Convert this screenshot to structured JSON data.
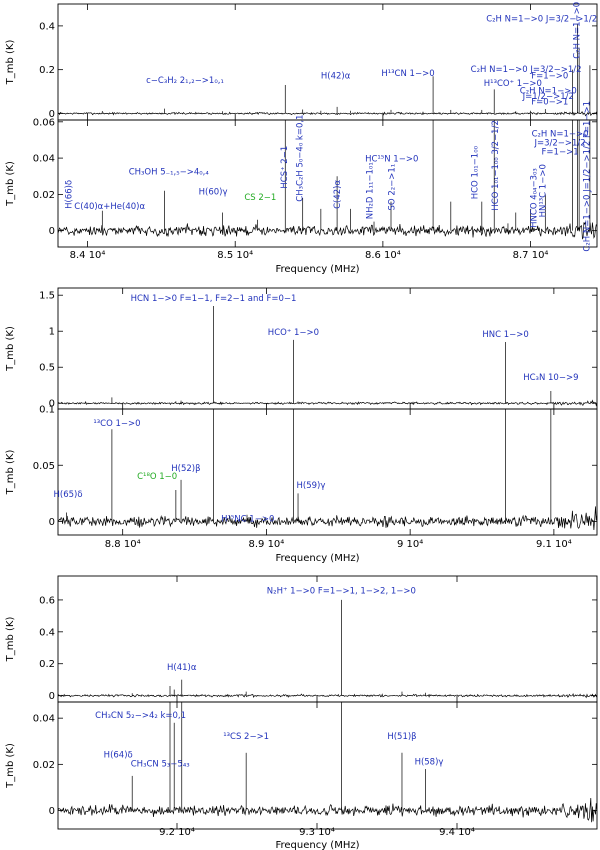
{
  "chart_data": [
    {
      "type": "line",
      "xlabel": "Frequency (MHz)",
      "ylabel": "T_mb (K)",
      "xlim": [
        83800,
        87450
      ],
      "x_ticks": [
        {
          "value": 84000,
          "label": "8.4 10⁴"
        },
        {
          "value": 85000,
          "label": "8.5 10⁴"
        },
        {
          "value": 86000,
          "label": "8.6 10⁴"
        },
        {
          "value": 87000,
          "label": "8.7 10⁴"
        }
      ],
      "top_panel": {
        "ylim": [
          -0.03,
          0.5
        ],
        "y_ticks": [
          {
            "value": 0,
            "label": "0"
          },
          {
            "value": 0.2,
            "label": "0.2"
          },
          {
            "value": 0.4,
            "label": "0.4"
          }
        ]
      },
      "bottom_panel": {
        "ylim": [
          -0.009,
          0.061
        ],
        "y_ticks": [
          {
            "value": 0,
            "label": "0"
          },
          {
            "value": 0.02,
            "label": "0.02"
          },
          {
            "value": 0.04,
            "label": "0.04"
          },
          {
            "value": 0.06,
            "label": "0.06"
          }
        ]
      },
      "lines": [
        {
          "x": 84100,
          "y": 0.011
        },
        {
          "x": 84521,
          "y": 0.022
        },
        {
          "x": 84915,
          "y": 0.01
        },
        {
          "x": 85150,
          "y": 0.006
        },
        {
          "x": 85339,
          "y": 0.13
        },
        {
          "x": 85457,
          "y": 0.018
        },
        {
          "x": 85690,
          "y": 0.03
        },
        {
          "x": 85940,
          "y": 0.005
        },
        {
          "x": 86055,
          "y": 0.016
        },
        {
          "x": 86340,
          "y": 0.17
        },
        {
          "x": 86670,
          "y": 0.016
        },
        {
          "x": 86754,
          "y": 0.11
        },
        {
          "x": 86847,
          "y": 0.004
        },
        {
          "x": 87100,
          "y": 0.02
        },
        {
          "x": 87284,
          "y": 0.2
        },
        {
          "x": 87317,
          "y": 0.41
        },
        {
          "x": 87329,
          "y": 0.3
        },
        {
          "x": 87402,
          "y": 0.22
        },
        {
          "x": 85580,
          "y": 0.012
        },
        {
          "x": 85780,
          "y": 0.012
        },
        {
          "x": 86460,
          "y": 0.016
        },
        {
          "x": 86900,
          "y": 0.01
        },
        {
          "x": 87000,
          "y": 0.012
        }
      ],
      "annotations": [
        {
          "text": "C₂H N=1−>0 J=3/2−>1/2 F=2−>1",
          "x": 87210,
          "y": 0.42,
          "panel": "top",
          "anchor": "middle",
          "color": "#2233bb"
        },
        {
          "text": "C₂H N=1−>0",
          "x": 87330,
          "y": 0.38,
          "panel": "top",
          "anchor": "middle",
          "color": "#2233bb",
          "rotate": true
        },
        {
          "text": "c−C₃H₂ 2₁,₂−>1₀,₁",
          "x": 84660,
          "y": 0.14,
          "panel": "top",
          "anchor": "middle",
          "color": "#2233bb"
        },
        {
          "text": "H(42)α",
          "x": 85680,
          "y": 0.16,
          "panel": "top",
          "anchor": "middle",
          "color": "#2233bb"
        },
        {
          "text": "H¹³CN 1−>0",
          "x": 86170,
          "y": 0.17,
          "panel": "top",
          "anchor": "middle",
          "color": "#2233bb"
        },
        {
          "text": "C₂H N=1−>0 J=3/2−>1/2",
          "x": 86970,
          "y": 0.19,
          "panel": "top",
          "anchor": "middle",
          "color": "#2233bb"
        },
        {
          "text": "F=1−>0",
          "x": 87130,
          "y": 0.16,
          "panel": "top",
          "anchor": "middle",
          "color": "#2233bb"
        },
        {
          "text": "H¹³CO⁺ 1−>0",
          "x": 86880,
          "y": 0.125,
          "panel": "top",
          "anchor": "middle",
          "color": "#2233bb"
        },
        {
          "text": "C₂H N=1−>0",
          "x": 87120,
          "y": 0.09,
          "panel": "top",
          "anchor": "middle",
          "color": "#2233bb"
        },
        {
          "text": "J=1/2−>1/2",
          "x": 87120,
          "y": 0.065,
          "panel": "top",
          "anchor": "middle",
          "color": "#2233bb"
        },
        {
          "text": "F=0−>1",
          "x": 87130,
          "y": 0.04,
          "panel": "top",
          "anchor": "middle",
          "color": "#2233bb"
        },
        {
          "text": "C(40)α+He(40)α",
          "x": 84150,
          "y": 0.012,
          "panel": "bottom",
          "anchor": "middle",
          "color": "#2233bb"
        },
        {
          "text": "H(66)δ",
          "x": 83890,
          "y": 0.02,
          "panel": "bottom",
          "anchor": "middle",
          "color": "#2233bb",
          "rotate": true
        },
        {
          "text": "CH₃OH 5₋₁,₅−>4₀,₄",
          "x": 84550,
          "y": 0.031,
          "panel": "bottom",
          "anchor": "middle",
          "color": "#2233bb"
        },
        {
          "text": "H(60)γ",
          "x": 84850,
          "y": 0.02,
          "panel": "bottom",
          "anchor": "middle",
          "color": "#2233bb"
        },
        {
          "text": "CS 2−1",
          "x": 85170,
          "y": 0.017,
          "panel": "bottom",
          "anchor": "middle",
          "color": "#22aa22"
        },
        {
          "text": "HCS⁺ 2−1",
          "x": 85350,
          "y": 0.035,
          "panel": "bottom",
          "anchor": "middle",
          "color": "#2233bb",
          "rotate": true
        },
        {
          "text": "CH₃C₂H 5₀−4₀ k=0,1",
          "x": 85457,
          "y": 0.04,
          "panel": "bottom",
          "anchor": "middle",
          "color": "#2233bb",
          "rotate": true
        },
        {
          "text": "C(42)α",
          "x": 85710,
          "y": 0.02,
          "panel": "bottom",
          "anchor": "middle",
          "color": "#2233bb",
          "rotate": true
        },
        {
          "text": "HC¹⁵N 1−>0",
          "x": 86060,
          "y": 0.038,
          "panel": "bottom",
          "anchor": "middle",
          "color": "#2233bb"
        },
        {
          "text": "NH₂D 1₁₁−1₀₁",
          "x": 85930,
          "y": 0.022,
          "panel": "bottom",
          "anchor": "middle",
          "color": "#2233bb",
          "rotate": true
        },
        {
          "text": "SO 2₂−>1₁",
          "x": 86080,
          "y": 0.024,
          "panel": "bottom",
          "anchor": "middle",
          "color": "#2233bb",
          "rotate": true
        },
        {
          "text": "HCO 1₀₁−1₀₀",
          "x": 86640,
          "y": 0.032,
          "panel": "bottom",
          "anchor": "middle",
          "color": "#2233bb",
          "rotate": true
        },
        {
          "text": "HCO 1₀₁−1₀₀ 3/2−1/2",
          "x": 86780,
          "y": 0.036,
          "panel": "bottom",
          "anchor": "middle",
          "color": "#2233bb",
          "rotate": true
        },
        {
          "text": "HNCO 4₀₄−3₀₃",
          "x": 87040,
          "y": 0.018,
          "panel": "bottom",
          "anchor": "middle",
          "color": "#2233bb",
          "rotate": true
        },
        {
          "text": "HN¹³C 1−>0",
          "x": 87100,
          "y": 0.022,
          "panel": "bottom",
          "anchor": "middle",
          "color": "#2233bb",
          "rotate": true
        },
        {
          "text": "C₂H N=1−>0",
          "x": 87200,
          "y": 0.052,
          "panel": "bottom",
          "anchor": "middle",
          "color": "#2233bb"
        },
        {
          "text": "J=3/2−>1/2",
          "x": 87200,
          "y": 0.047,
          "panel": "bottom",
          "anchor": "middle",
          "color": "#2233bb"
        },
        {
          "text": "F=1−>1",
          "x": 87200,
          "y": 0.042,
          "panel": "bottom",
          "anchor": "middle",
          "color": "#2233bb"
        },
        {
          "text": "C₂H N=1−>0 J=1/2−>1/2 F=1−>1",
          "x": 87400,
          "y": 0.03,
          "panel": "bottom",
          "anchor": "middle",
          "color": "#2233bb",
          "rotate": true
        }
      ]
    },
    {
      "type": "line",
      "xlabel": "Frequency (MHz)",
      "ylabel": "T_mb (K)",
      "xlim": [
        87550,
        91300
      ],
      "x_ticks": [
        {
          "value": 88000,
          "label": "8.8 10⁴"
        },
        {
          "value": 89000,
          "label": "8.9 10⁴"
        },
        {
          "value": 90000,
          "label": "9 10⁴"
        },
        {
          "value": 91000,
          "label": "9.1 10⁴"
        }
      ],
      "top_panel": {
        "ylim": [
          -0.08,
          1.6
        ],
        "y_ticks": [
          {
            "value": 0,
            "label": "0"
          },
          {
            "value": 0.5,
            "label": "0.5"
          },
          {
            "value": 1,
            "label": "1"
          },
          {
            "value": 1.5,
            "label": "1.5"
          }
        ]
      },
      "bottom_panel": {
        "ylim": [
          -0.012,
          0.1
        ],
        "y_ticks": [
          {
            "value": 0,
            "label": "0"
          },
          {
            "value": 0.05,
            "label": "0.05"
          },
          {
            "value": 0.1,
            "label": "0.1"
          }
        ]
      },
      "lines": [
        {
          "x": 87610,
          "y": 0.008
        },
        {
          "x": 87925,
          "y": 0.082
        },
        {
          "x": 88370,
          "y": 0.028
        },
        {
          "x": 88406,
          "y": 0.037
        },
        {
          "x": 88632,
          "y": 1.35
        },
        {
          "x": 88865,
          "y": 0.006
        },
        {
          "x": 89188,
          "y": 0.88
        },
        {
          "x": 89220,
          "y": 0.025
        },
        {
          "x": 90664,
          "y": 0.85
        },
        {
          "x": 90979,
          "y": 0.17
        }
      ],
      "annotations": [
        {
          "text": "HCN 1−>0 F=1−1, F=2−1 and F=0−1",
          "x": 88632,
          "y": 1.42,
          "panel": "top",
          "anchor": "middle",
          "color": "#2233bb"
        },
        {
          "text": "HCO⁺ 1−>0",
          "x": 89188,
          "y": 0.95,
          "panel": "top",
          "anchor": "middle",
          "color": "#2233bb"
        },
        {
          "text": "HNC 1−>0",
          "x": 90664,
          "y": 0.92,
          "panel": "top",
          "anchor": "middle",
          "color": "#2233bb"
        },
        {
          "text": "HC₃N 10−>9",
          "x": 90979,
          "y": 0.32,
          "panel": "top",
          "anchor": "middle",
          "color": "#2233bb"
        },
        {
          "text": "¹³CO 1−>0",
          "x": 87960,
          "y": 0.085,
          "panel": "bottom",
          "anchor": "middle",
          "color": "#2233bb"
        },
        {
          "text": "H(65)δ",
          "x": 87620,
          "y": 0.022,
          "panel": "bottom",
          "anchor": "middle",
          "color": "#2233bb"
        },
        {
          "text": "C¹⁸O 1−0",
          "x": 88240,
          "y": 0.038,
          "panel": "bottom",
          "anchor": "middle",
          "color": "#22aa22"
        },
        {
          "text": "H(52)β",
          "x": 88440,
          "y": 0.045,
          "panel": "bottom",
          "anchor": "middle",
          "color": "#2233bb"
        },
        {
          "text": "H¹⁵NC 1−>0",
          "x": 88870,
          "y": 0.0,
          "panel": "bottom",
          "anchor": "middle",
          "color": "#2233bb"
        },
        {
          "text": "H(59)γ",
          "x": 89310,
          "y": 0.03,
          "panel": "bottom",
          "anchor": "middle",
          "color": "#2233bb"
        }
      ]
    },
    {
      "type": "line",
      "xlabel": "Frequency (MHz)",
      "ylabel": "T_mb (K)",
      "xlim": [
        91150,
        95000
      ],
      "x_ticks": [
        {
          "value": 92000,
          "label": "9.2 10⁴"
        },
        {
          "value": 93000,
          "label": "9.3 10⁴"
        },
        {
          "value": 94000,
          "label": "9.4 10⁴"
        }
      ],
      "top_panel": {
        "ylim": [
          -0.04,
          0.75
        ],
        "y_ticks": [
          {
            "value": 0,
            "label": "0"
          },
          {
            "value": 0.2,
            "label": "0.2"
          },
          {
            "value": 0.4,
            "label": "0.4"
          },
          {
            "value": 0.6,
            "label": "0.6"
          }
        ]
      },
      "bottom_panel": {
        "ylim": [
          -0.008,
          0.047
        ],
        "y_ticks": [
          {
            "value": 0,
            "label": "0"
          },
          {
            "value": 0.02,
            "label": "0.02"
          },
          {
            "value": 0.04,
            "label": "0.04"
          }
        ]
      },
      "lines": [
        {
          "x": 91680,
          "y": 0.015
        },
        {
          "x": 91950,
          "y": 0.06
        },
        {
          "x": 91980,
          "y": 0.038
        },
        {
          "x": 92034,
          "y": 0.1
        },
        {
          "x": 92494,
          "y": 0.025
        },
        {
          "x": 93174,
          "y": 0.6
        },
        {
          "x": 93607,
          "y": 0.025
        },
        {
          "x": 93776,
          "y": 0.018
        }
      ],
      "annotations": [
        {
          "text": "N₂H⁺ 1−>0 F=1−>1, 1−>2, 1−>0",
          "x": 93174,
          "y": 0.64,
          "panel": "top",
          "anchor": "middle",
          "color": "#2233bb"
        },
        {
          "text": "H(41)α",
          "x": 92034,
          "y": 0.16,
          "panel": "top",
          "anchor": "middle",
          "color": "#2233bb"
        },
        {
          "text": "CH₃CN 5₂−>4₂ k=0,1",
          "x": 91740,
          "y": 0.04,
          "panel": "bottom",
          "anchor": "middle",
          "color": "#2233bb"
        },
        {
          "text": "H(64)δ",
          "x": 91580,
          "y": 0.023,
          "panel": "bottom",
          "anchor": "middle",
          "color": "#2233bb"
        },
        {
          "text": "CH₃CN 5₃−5₄₃",
          "x": 91880,
          "y": 0.019,
          "panel": "bottom",
          "anchor": "middle",
          "color": "#2233bb"
        },
        {
          "text": "¹³CS 2−>1",
          "x": 92494,
          "y": 0.031,
          "panel": "bottom",
          "anchor": "middle",
          "color": "#2233bb"
        },
        {
          "text": "H(51)β",
          "x": 93607,
          "y": 0.031,
          "panel": "bottom",
          "anchor": "middle",
          "color": "#2233bb"
        },
        {
          "text": "H(58)γ",
          "x": 93800,
          "y": 0.02,
          "panel": "bottom",
          "anchor": "middle",
          "color": "#2233bb"
        }
      ]
    }
  ]
}
